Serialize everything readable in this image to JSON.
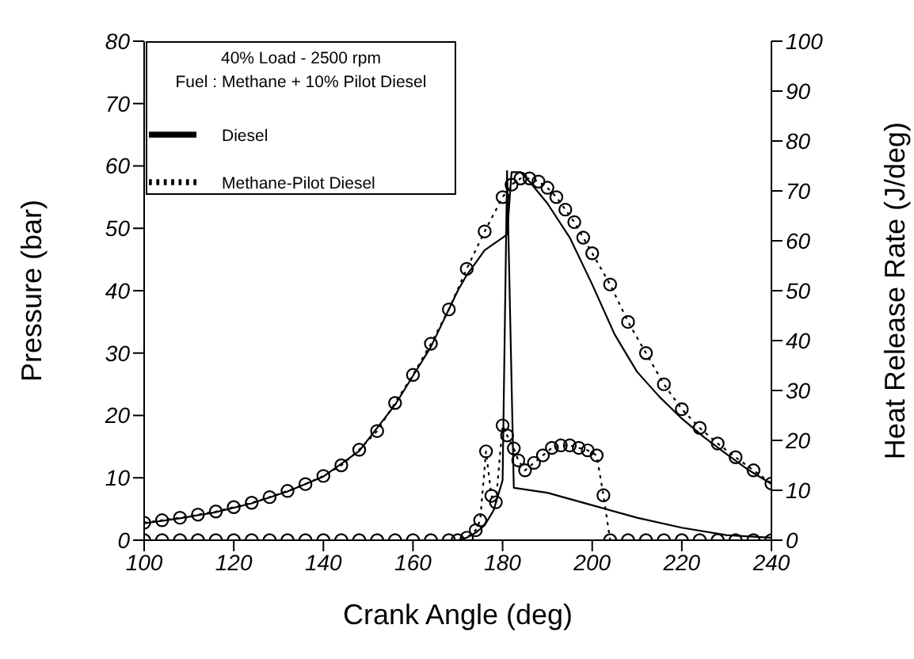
{
  "chart_data": {
    "type": "line",
    "xlabel": "Crank Angle (deg)",
    "ylabel": "Pressure (bar)",
    "y2label": "Heat Release Rate (J/deg)",
    "annotations": [
      "40% Load - 2500 rpm",
      "Fuel : Methane + 10% Pilot Diesel"
    ],
    "xlim": [
      100,
      240
    ],
    "xticks": [
      100,
      120,
      140,
      160,
      180,
      200,
      220,
      240
    ],
    "ylim": [
      0,
      80
    ],
    "yticks": [
      0,
      10,
      20,
      30,
      40,
      50,
      60,
      70,
      80
    ],
    "y2lim": [
      0,
      100
    ],
    "y2ticks": [
      0,
      10,
      20,
      30,
      40,
      50,
      60,
      70,
      80,
      90,
      100
    ],
    "grid": false,
    "legend": "top left",
    "series": [
      {
        "name": "Diesel",
        "color": "#000000",
        "line_style": "solid",
        "marker": "none",
        "x": [
          100,
          108,
          116,
          124,
          132,
          140,
          148,
          156,
          164,
          170,
          172,
          176,
          180,
          181,
          182,
          184,
          186,
          190,
          195,
          200,
          205,
          210,
          215,
          220,
          225,
          230,
          235,
          240
        ],
        "values": [
          2.7,
          3.5,
          4.5,
          5.9,
          7.8,
          10.2,
          14.3,
          21.7,
          31,
          40,
          42.5,
          46.5,
          48.5,
          49,
          59,
          59,
          57.5,
          54,
          48.5,
          41,
          33,
          27,
          23,
          19.5,
          16.5,
          13.8,
          11.2,
          9
        ]
      },
      {
        "name": "Methane-Pilot Diesel",
        "color": "#000000",
        "line_style": "dotted",
        "marker": "circle",
        "x": [
          100,
          104,
          108,
          112,
          116,
          120,
          124,
          128,
          132,
          136,
          140,
          144,
          148,
          152,
          156,
          160,
          164,
          168,
          172,
          176,
          180,
          182,
          184,
          186,
          188,
          190,
          192,
          194,
          196,
          198,
          200,
          204,
          208,
          212,
          216,
          220,
          224,
          228,
          232,
          236,
          240
        ],
        "values": [
          2.8,
          3.2,
          3.6,
          4.1,
          4.6,
          5.3,
          6,
          6.9,
          7.9,
          9,
          10.3,
          12,
          14.5,
          17.5,
          22,
          26.5,
          31.5,
          37,
          43.5,
          49.5,
          55,
          57,
          58,
          58,
          57.5,
          56.5,
          55,
          53,
          51,
          48.5,
          46,
          41,
          35,
          30,
          25,
          21,
          18,
          15.5,
          13.3,
          11.2,
          9.1
        ]
      },
      {
        "color": "#000000",
        "axis": "y2",
        "line_style": "solid",
        "marker": "none",
        "x": [
          100,
          170,
          172,
          174,
          176,
          178,
          180,
          181,
          182.5,
          190,
          200,
          210,
          220,
          230,
          240
        ],
        "values": [
          0,
          0,
          0.5,
          1.5,
          3,
          6,
          12,
          74,
          10.5,
          9.5,
          7,
          4.5,
          2.5,
          1,
          0.5
        ]
      },
      {
        "color": "#000000",
        "axis": "y2",
        "line_style": "dotted",
        "marker": "circle",
        "x": [
          100,
          104,
          108,
          112,
          116,
          120,
          124,
          128,
          132,
          136,
          140,
          144,
          148,
          152,
          156,
          160,
          164,
          168,
          170,
          172,
          174,
          175,
          176.3,
          177.5,
          178.5,
          180,
          181,
          182.5,
          183.5,
          185,
          187,
          189,
          191,
          193,
          195,
          197,
          199,
          201,
          202.5,
          204,
          208,
          212,
          216,
          220,
          224,
          228,
          232,
          236,
          240
        ],
        "values": [
          0,
          0,
          0,
          0,
          0,
          0,
          0,
          0,
          0,
          0,
          0,
          0,
          0,
          0,
          0,
          0,
          0,
          0,
          0,
          0.5,
          2,
          4,
          17.8,
          8.9,
          7.6,
          23,
          21,
          18.4,
          16,
          14,
          15.5,
          17,
          18.5,
          19,
          19,
          18.5,
          18,
          17,
          9,
          0,
          0,
          0,
          0,
          0,
          0,
          0,
          0,
          0,
          0
        ]
      }
    ]
  }
}
